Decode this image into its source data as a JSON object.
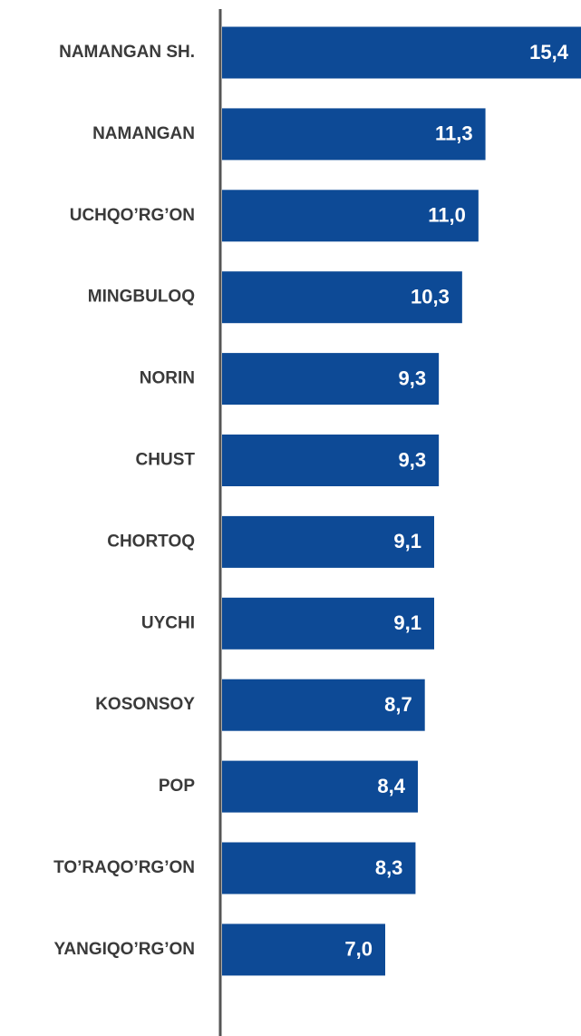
{
  "chart_data": {
    "type": "bar",
    "orientation": "horizontal",
    "categories": [
      "NAMANGAN SH.",
      "NAMANGAN",
      "UCHQO’RG’ON",
      "MINGBULOQ",
      "NORIN",
      "CHUST",
      "CHORTOQ",
      "UYCHI",
      "KOSONSOY",
      "POP",
      "TO’RAQO’RG’ON",
      "YANGIQO’RG’ON"
    ],
    "values": [
      15.4,
      11.3,
      11.0,
      10.3,
      9.3,
      9.3,
      9.1,
      9.1,
      8.7,
      8.4,
      8.3,
      7.0
    ],
    "value_labels": [
      "15,4",
      "11,3",
      "11,0",
      "10,3",
      "9,3",
      "9,3",
      "9,1",
      "9,1",
      "8,7",
      "8,4",
      "8,3",
      "7,0"
    ],
    "color": "#0d4a96",
    "xlim": [
      0,
      15.4
    ]
  }
}
